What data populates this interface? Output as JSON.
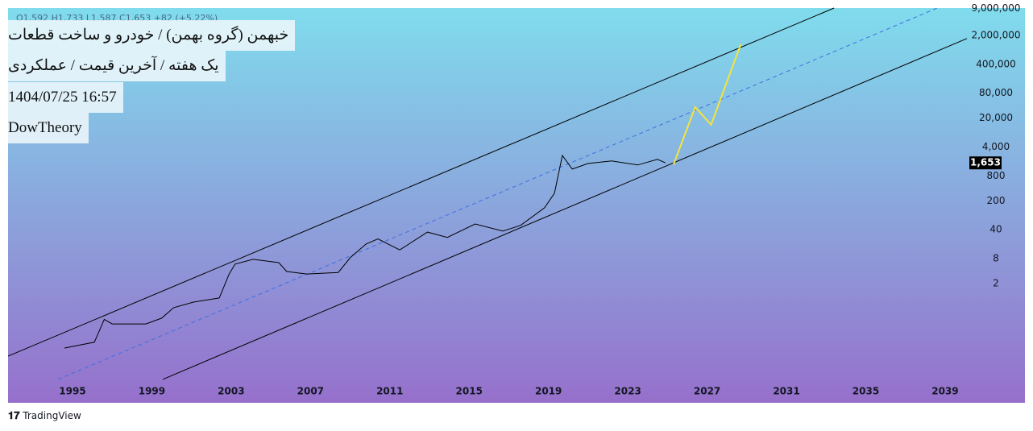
{
  "chart_data": {
    "type": "line",
    "header": {
      "symbol": "خبهمن (گروه بهمن) / خودرو و ساخت قطعات",
      "settings": "یک هفته / آخرین قیمت / عملکردی",
      "datetime": "1404/07/25 16:57",
      "author": "DowTheory"
    },
    "ohlc": "O1,592  H1,733  L1,587  C1,653  +82 (+5.22%)",
    "footer": "TradingView",
    "log_scale": true,
    "xlim": [
      1991.75,
      2040.1
    ],
    "xticks": [
      1995,
      1999,
      2003,
      2007,
      2011,
      2015,
      2019,
      2023,
      2027,
      2031,
      2035,
      2039
    ],
    "ylim": [
      0.0026,
      9200000
    ],
    "yticks": [
      2,
      8,
      40,
      200,
      800,
      {
        "value": 4000,
        "label": "4,000"
      },
      {
        "value": 20000,
        "label": "20,000"
      },
      {
        "value": 80000,
        "label": "80,000"
      },
      {
        "value": 400000,
        "label": "400,000"
      },
      {
        "value": 2000000,
        "label": "2,000,000"
      },
      {
        "value": 9000000,
        "label": "9,000,000"
      }
    ],
    "series": [
      {
        "color": "#000000",
        "x": [
          1994.6,
          1996.1,
          1996.6,
          1997.0,
          1998.7,
          1999.5,
          2000.1,
          2001.1,
          2002.4,
          2002.9,
          2003.2,
          2004.1,
          2005.4,
          2005.8,
          2006.8,
          2008.4,
          2009.0,
          2009.8,
          2010.4,
          2011.5,
          2012.9,
          2013.9,
          2015.3,
          2016.7,
          2017.6,
          2018.8,
          2019.3,
          2019.7,
          2020.2,
          2021.0,
          2022.2,
          2023.5,
          2024.5,
          2024.9
        ],
        "values": [
          0.055,
          0.076,
          0.27,
          0.21,
          0.21,
          0.29,
          0.52,
          0.71,
          0.89,
          3.4,
          5.9,
          7.7,
          6.4,
          3.9,
          3.4,
          3.7,
          8.4,
          18,
          24,
          13,
          35,
          26,
          55,
          37,
          51,
          136,
          305,
          2500,
          1170,
          1600,
          1840,
          1470,
          2010,
          1653
        ]
      }
    ],
    "last_price": {
      "value": 1653,
      "label": "1,653"
    },
    "trend_lines": [
      {
        "color": "#000000",
        "dashed": false,
        "x": [
          1991.75,
          2033.4
        ],
        "values": [
          0.035,
          9200000
        ]
      },
      {
        "color": "#3d6fe0",
        "dashed": true,
        "x": [
          1994.27,
          2038.6
        ],
        "values": [
          0.0096,
          9200000
        ]
      },
      {
        "color": "#000000",
        "dashed": false,
        "x": [
          1999.55,
          2040.1
        ],
        "values": [
          0.0096,
          1690000
        ]
      },
      {
        "color": "#f5e43c",
        "dashed": false,
        "x": [
          2025.3,
          2026.4,
          2027.2,
          2028.7
        ],
        "values": [
          1470,
          37000,
          13800,
          1230000
        ]
      }
    ]
  }
}
